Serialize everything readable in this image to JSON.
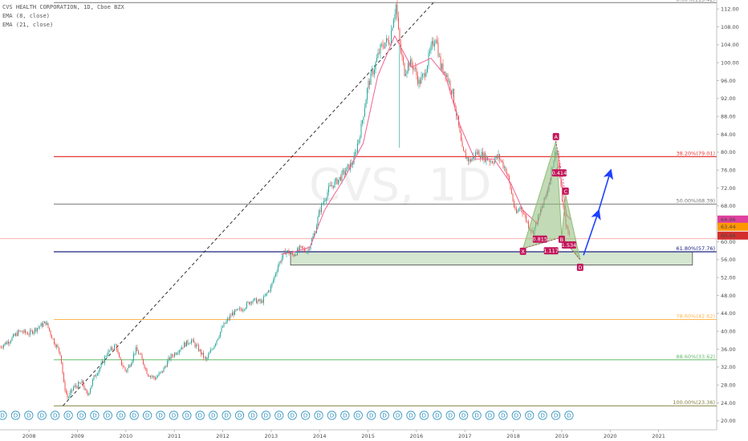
{
  "legend": {
    "title": "CVS HEALTH CORPORATION, 1D, Cboe BZX",
    "ema8": "EMA (8, close)",
    "ema21": "EMA (21, close)"
  },
  "watermark": "CVS, 1D",
  "chart_data": {
    "type": "candlestick",
    "ylim": [
      18,
      114
    ],
    "xlim": [
      2007.4,
      2022.2
    ],
    "y_ticks": [
      20,
      24,
      28,
      32,
      36,
      40,
      44,
      48,
      52,
      56,
      60,
      64,
      68,
      72,
      76,
      80,
      84,
      88,
      92,
      96,
      100,
      104,
      108,
      112
    ],
    "x_ticks": [
      {
        "x": 2008,
        "label": "2008"
      },
      {
        "x": 2009,
        "label": "2009"
      },
      {
        "x": 2010,
        "label": "2010"
      },
      {
        "x": 2011,
        "label": "2011"
      },
      {
        "x": 2012,
        "label": "2012"
      },
      {
        "x": 2013,
        "label": "2013"
      },
      {
        "x": 2014,
        "label": "2014"
      },
      {
        "x": 2015,
        "label": "2015"
      },
      {
        "x": 2016,
        "label": "2016"
      },
      {
        "x": 2017,
        "label": "2017"
      },
      {
        "x": 2018,
        "label": "2018"
      },
      {
        "x": 2019,
        "label": "2019"
      },
      {
        "x": 2020,
        "label": "2020"
      },
      {
        "x": 2021,
        "label": "2021"
      }
    ],
    "price_path": [
      [
        2007.4,
        36.5
      ],
      [
        2007.6,
        38.0
      ],
      [
        2007.8,
        40.0
      ],
      [
        2008.0,
        39.5
      ],
      [
        2008.2,
        41.0
      ],
      [
        2008.35,
        42.0
      ],
      [
        2008.5,
        38.0
      ],
      [
        2008.65,
        35.0
      ],
      [
        2008.72,
        28.0
      ],
      [
        2008.8,
        25.0
      ],
      [
        2008.92,
        27.5
      ],
      [
        2009.1,
        28.5
      ],
      [
        2009.2,
        25.5
      ],
      [
        2009.35,
        30.0
      ],
      [
        2009.5,
        32.5
      ],
      [
        2009.6,
        35.0
      ],
      [
        2009.8,
        37.0
      ],
      [
        2009.85,
        34.0
      ],
      [
        2010.0,
        31.0
      ],
      [
        2010.1,
        33.0
      ],
      [
        2010.2,
        36.0
      ],
      [
        2010.3,
        34.5
      ],
      [
        2010.45,
        30.5
      ],
      [
        2010.6,
        29.5
      ],
      [
        2010.75,
        31.0
      ],
      [
        2010.9,
        34.0
      ],
      [
        2011.05,
        35.5
      ],
      [
        2011.2,
        37.0
      ],
      [
        2011.35,
        38.0
      ],
      [
        2011.5,
        36.0
      ],
      [
        2011.65,
        33.5
      ],
      [
        2011.8,
        36.5
      ],
      [
        2012.0,
        41.0
      ],
      [
        2012.2,
        44.0
      ],
      [
        2012.4,
        45.0
      ],
      [
        2012.6,
        47.0
      ],
      [
        2012.8,
        46.5
      ],
      [
        2013.0,
        50.0
      ],
      [
        2013.15,
        55.0
      ],
      [
        2013.3,
        58.0
      ],
      [
        2013.45,
        57.0
      ],
      [
        2013.6,
        58.5
      ],
      [
        2013.75,
        58.0
      ],
      [
        2013.9,
        62.0
      ],
      [
        2014.0,
        67.0
      ],
      [
        2014.2,
        72.0
      ],
      [
        2014.4,
        74.0
      ],
      [
        2014.55,
        76.0
      ],
      [
        2014.7,
        78.0
      ],
      [
        2014.85,
        85.0
      ],
      [
        2015.0,
        95.0
      ],
      [
        2015.1,
        98.0
      ],
      [
        2015.25,
        103.0
      ],
      [
        2015.35,
        104.5
      ],
      [
        2015.45,
        105.0
      ],
      [
        2015.52,
        110.0
      ],
      [
        2015.58,
        113.0
      ],
      [
        2015.65,
        104.0
      ],
      [
        2015.75,
        98.0
      ],
      [
        2015.85,
        100.0
      ],
      [
        2015.95,
        99.0
      ],
      [
        2016.05,
        95.5
      ],
      [
        2016.15,
        97.0
      ],
      [
        2016.3,
        103.0
      ],
      [
        2016.4,
        106.0
      ],
      [
        2016.5,
        99.0
      ],
      [
        2016.6,
        98.0
      ],
      [
        2016.75,
        93.0
      ],
      [
        2016.85,
        87.0
      ],
      [
        2016.95,
        80.0
      ],
      [
        2017.1,
        78.0
      ],
      [
        2017.25,
        80.0
      ],
      [
        2017.4,
        79.0
      ],
      [
        2017.55,
        78.0
      ],
      [
        2017.7,
        79.0
      ],
      [
        2017.85,
        76.0
      ],
      [
        2017.95,
        71.5
      ],
      [
        2018.05,
        66.0
      ],
      [
        2018.15,
        68.0
      ],
      [
        2018.3,
        64.0
      ],
      [
        2018.4,
        62.0
      ],
      [
        2018.55,
        66.5
      ],
      [
        2018.7,
        71.0
      ],
      [
        2018.82,
        78.0
      ],
      [
        2018.9,
        81.0
      ],
      [
        2018.98,
        72.0
      ],
      [
        2019.05,
        66.0
      ],
      [
        2019.12,
        62.0
      ],
      [
        2019.18,
        61.5
      ]
    ],
    "ema8_path": [
      [
        2013.2,
        57.2
      ],
      [
        2013.5,
        57.8
      ],
      [
        2013.8,
        58.8
      ],
      [
        2014.1,
        67.0
      ],
      [
        2014.5,
        74.0
      ],
      [
        2014.9,
        82.0
      ],
      [
        2015.2,
        97.0
      ],
      [
        2015.55,
        106.0
      ],
      [
        2015.9,
        99.0
      ],
      [
        2016.3,
        101.0
      ],
      [
        2016.6,
        97.0
      ],
      [
        2016.9,
        86.0
      ],
      [
        2017.2,
        78.5
      ],
      [
        2017.6,
        78.5
      ],
      [
        2017.95,
        73.0
      ],
      [
        2018.2,
        67.0
      ],
      [
        2018.5,
        64.0
      ],
      [
        2018.8,
        75.0
      ],
      [
        2018.95,
        77.0
      ],
      [
        2019.1,
        66.0
      ],
      [
        2019.18,
        64.96
      ]
    ],
    "price_labels": [
      {
        "value": 64.96,
        "text": "64.96",
        "color": "#e040a0"
      },
      {
        "value": 63.44,
        "text": "63.44",
        "color": "#ff9800"
      },
      {
        "value": 60.68,
        "text": "60.68",
        "color": "#d32f2f"
      }
    ],
    "pink_level": 60.68,
    "fib_levels": [
      {
        "value": 113.42,
        "text": "0.00%(113.42)",
        "color": "#787878"
      },
      {
        "value": 79.01,
        "text": "38.20%(79.01)",
        "color": "#e53935"
      },
      {
        "value": 68.39,
        "text": "50.00%(68.39)",
        "color": "#787878"
      },
      {
        "value": 57.76,
        "text": "61.80%(57.76)",
        "color": "#1a237e"
      },
      {
        "value": 42.62,
        "text": "78.60%(42.62)",
        "color": "#ffb74d"
      },
      {
        "value": 33.62,
        "text": "88.60%(33.62)",
        "color": "#66bb6a"
      },
      {
        "value": 23.36,
        "text": "100.00%(23.36)",
        "color": "#7f7f3f"
      }
    ],
    "trendline": {
      "from": [
        2008.7,
        23.36
      ],
      "to": [
        2016.35,
        113.42
      ]
    },
    "support_zone": {
      "x0": 2013.4,
      "x1": 2021.7,
      "y0": 54.8,
      "y1": 57.76
    },
    "harmonic_pattern": {
      "points": [
        {
          "label": "X",
          "x": 2018.2,
          "y": 58.5
        },
        {
          "label": "A",
          "x": 2018.88,
          "y": 82.5
        },
        {
          "label": "B",
          "x": 2019.0,
          "y": 61.0
        },
        {
          "label": "C",
          "x": 2019.08,
          "y": 70.5
        },
        {
          "label": "D",
          "x": 2019.38,
          "y": 56.0
        }
      ],
      "ratios": [
        {
          "text": "0.414",
          "x": 2018.95,
          "y": 75.3
        },
        {
          "text": "0.815",
          "x": 2018.55,
          "y": 60.5
        },
        {
          "text": "1.117",
          "x": 2018.78,
          "y": 57.9
        },
        {
          "text": "1.534",
          "x": 2019.15,
          "y": 59.2
        }
      ]
    },
    "projection_arrows": [
      {
        "from": [
          2019.45,
          57.0
        ],
        "to": [
          2019.75,
          66.5
        ]
      },
      {
        "from": [
          2019.75,
          66.5
        ],
        "to": [
          2020.0,
          75.5
        ]
      }
    ],
    "event_marker_label": "D",
    "event_marker_count": 44,
    "event_marker_x_range": [
      2007.45,
      2019.15
    ]
  }
}
